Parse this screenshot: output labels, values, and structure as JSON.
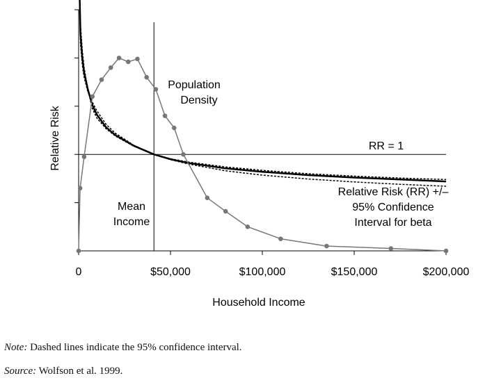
{
  "chart_data": {
    "type": "line",
    "xlabel": "Household Income",
    "ylabel": "Relative Risk",
    "xlim": [
      0,
      200000
    ],
    "x_ticks": [
      0,
      50000,
      100000,
      150000,
      200000
    ],
    "x_tick_labels": [
      "0",
      "$50,000",
      "$100,000",
      "$150,000",
      "$200,000"
    ],
    "y_tick_count": 5,
    "grid": false,
    "reference_lines": {
      "rr1_label": "RR = 1",
      "mean_income_x": 41000
    },
    "annotations": {
      "population_density": [
        "Population",
        "Density"
      ],
      "mean_income": [
        "Mean",
        "Income"
      ],
      "relative_risk": [
        "Relative Risk (RR) +/–",
        "95% Confidence",
        "Interval for beta"
      ]
    },
    "series": [
      {
        "role": "relative_risk",
        "style": "solid-thick",
        "x": [
          500,
          1000,
          2000,
          3000,
          5000,
          7500,
          10000,
          15000,
          20000,
          30000,
          41000,
          50000,
          60000,
          80000,
          100000,
          125000,
          150000,
          175000,
          200000
        ],
        "y": [
          5.0,
          4.1,
          3.6,
          3.3,
          2.95,
          2.62,
          2.42,
          2.16,
          2.0,
          1.78,
          1.6,
          1.5,
          1.42,
          1.31,
          1.24,
          1.17,
          1.12,
          1.08,
          1.04
        ]
      },
      {
        "role": "ci_upper",
        "style": "dashed",
        "x": [
          500,
          1000,
          2000,
          3000,
          5000,
          7500,
          10000,
          15000,
          20000,
          30000,
          41000,
          50000,
          60000,
          80000,
          100000,
          125000,
          150000,
          175000,
          200000
        ],
        "y": [
          5.0,
          4.3,
          3.75,
          3.4,
          2.95,
          2.55,
          2.35,
          2.13,
          1.98,
          1.77,
          1.6,
          1.51,
          1.44,
          1.34,
          1.27,
          1.2,
          1.15,
          1.11,
          1.08
        ]
      },
      {
        "role": "ci_lower",
        "style": "dashed",
        "x": [
          500,
          1000,
          2000,
          3000,
          5000,
          7500,
          10000,
          15000,
          20000,
          30000,
          41000,
          50000,
          60000,
          80000,
          100000,
          125000,
          150000,
          175000,
          200000
        ],
        "y": [
          4.95,
          3.9,
          3.45,
          3.2,
          2.9,
          2.68,
          2.5,
          2.22,
          2.04,
          1.79,
          1.6,
          1.49,
          1.4,
          1.26,
          1.17,
          1.09,
          1.03,
          0.98,
          0.94
        ]
      },
      {
        "role": "population_density",
        "style": "gray-markers",
        "x": [
          0,
          800,
          3000,
          7500,
          12500,
          17500,
          22000,
          27000,
          32000,
          37000,
          42000,
          47000,
          52000,
          57000,
          70000,
          80000,
          92000,
          110000,
          135000,
          170000,
          200000
        ],
        "y": [
          0.0,
          1.3,
          1.95,
          3.2,
          3.55,
          3.8,
          4.0,
          3.92,
          3.98,
          3.6,
          3.35,
          2.8,
          2.55,
          2.0,
          1.1,
          0.82,
          0.5,
          0.25,
          0.1,
          0.05,
          0.0
        ]
      }
    ]
  },
  "footnotes": {
    "note_label": "Note:",
    "note_text": " Dashed lines indicate the 95% confidence interval.",
    "source_label": "Source:",
    "source_text": " Wolfson et al. 1999."
  }
}
